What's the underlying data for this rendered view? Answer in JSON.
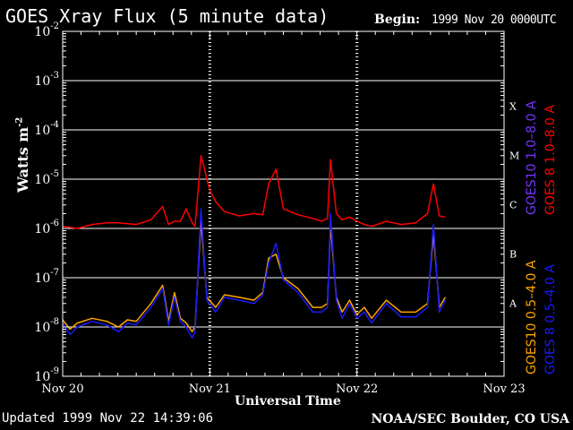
{
  "header": {
    "title": "GOES Xray Flux (5 minute data)",
    "begin_label": "Begin:",
    "begin_value": "1999 Nov 20 0000UTC"
  },
  "footer": {
    "updated": "Updated 1999 Nov 22 14:39:06",
    "credit": "NOAA/SEC Boulder, CO USA"
  },
  "colors": {
    "background": "#000000",
    "grid": "#ffffff",
    "red": "#ff0000",
    "blue": "#1a1aff",
    "orange": "#ffa500",
    "purple": "#7733ff"
  },
  "chart_data": {
    "type": "line",
    "title": "GOES Xray Flux (5 minute data)",
    "xlabel": "Universal Time",
    "ylabel": "Watts m-2",
    "ylabel_parts": {
      "base": "Watts m",
      "sup": "-2"
    },
    "yscale": "log",
    "ylim": [
      1e-09,
      0.01
    ],
    "xlim": [
      0,
      3
    ],
    "x_units": "days since 1999 Nov 20 00:00 UT",
    "x_ticks": [
      {
        "value": 0,
        "label": "Nov 20"
      },
      {
        "value": 1,
        "label": "Nov 21"
      },
      {
        "value": 2,
        "label": "Nov 22"
      },
      {
        "value": 3,
        "label": "Nov 23"
      }
    ],
    "y_ticks": [
      {
        "exp": -9,
        "base": "10",
        "sup": "-9"
      },
      {
        "exp": -8,
        "base": "10",
        "sup": "-8"
      },
      {
        "exp": -7,
        "base": "10",
        "sup": "-7"
      },
      {
        "exp": -6,
        "base": "10",
        "sup": "-6"
      },
      {
        "exp": -5,
        "base": "10",
        "sup": "-5"
      },
      {
        "exp": -4,
        "base": "10",
        "sup": "-4"
      },
      {
        "exp": -3,
        "base": "10",
        "sup": "-3"
      },
      {
        "exp": -2,
        "base": "10",
        "sup": "-2"
      }
    ],
    "flare_classes": [
      {
        "label": "A",
        "exp": -7.5
      },
      {
        "label": "B",
        "exp": -6.5
      },
      {
        "label": "C",
        "exp": -5.5
      },
      {
        "label": "M",
        "exp": -4.5
      },
      {
        "label": "X",
        "exp": -3.5
      }
    ],
    "grid": true,
    "legend": [
      {
        "text": "GOES10 1.0–8.0 A",
        "color": "#7733ff"
      },
      {
        "text": "GOES 8 1.0–8.0 A",
        "color": "#ff0000"
      },
      {
        "text": "GOES10 0.5–4.0 A",
        "color": "#ffa500"
      },
      {
        "text": "GOES 8 0.5–4.0 A",
        "color": "#1a1aff"
      }
    ],
    "series": [
      {
        "name": "GOES 8 1.0–8.0 A",
        "color": "#ff0000",
        "x": [
          0.0,
          0.1,
          0.2,
          0.3,
          0.38,
          0.5,
          0.6,
          0.68,
          0.72,
          0.76,
          0.8,
          0.84,
          0.88,
          0.9,
          0.94,
          0.96,
          0.98,
          1.0,
          1.04,
          1.1,
          1.2,
          1.3,
          1.36,
          1.4,
          1.45,
          1.5,
          1.6,
          1.7,
          1.76,
          1.8,
          1.82,
          1.86,
          1.9,
          1.95,
          2.0,
          2.05,
          2.1,
          2.2,
          2.3,
          2.4,
          2.48,
          2.52,
          2.56,
          2.6
        ],
        "y": [
          1.1e-06,
          1e-06,
          1.2e-06,
          1.3e-06,
          1.3e-06,
          1.2e-06,
          1.5e-06,
          2.8e-06,
          1.2e-06,
          1.4e-06,
          1.4e-06,
          2.5e-06,
          1.3e-06,
          1.1e-06,
          3e-05,
          1.8e-05,
          1e-05,
          6e-06,
          3.5e-06,
          2.2e-06,
          1.8e-06,
          2e-06,
          1.9e-06,
          8e-06,
          1.6e-05,
          2.5e-06,
          1.9e-06,
          1.6e-06,
          1.4e-06,
          1.6e-06,
          2.5e-05,
          2e-06,
          1.5e-06,
          1.7e-06,
          1.4e-06,
          1.2e-06,
          1.1e-06,
          1.4e-06,
          1.2e-06,
          1.3e-06,
          2e-06,
          8e-06,
          1.8e-06,
          1.7e-06
        ]
      },
      {
        "name": "GOES10 0.5–4.0 A",
        "color": "#ffa500",
        "x": [
          0.0,
          0.05,
          0.1,
          0.2,
          0.3,
          0.38,
          0.44,
          0.5,
          0.6,
          0.68,
          0.72,
          0.76,
          0.8,
          0.84,
          0.88,
          0.9,
          0.94,
          0.98,
          1.04,
          1.1,
          1.2,
          1.3,
          1.36,
          1.4,
          1.45,
          1.5,
          1.6,
          1.7,
          1.76,
          1.8,
          1.82,
          1.86,
          1.9,
          1.95,
          2.0,
          2.05,
          2.1,
          2.2,
          2.3,
          2.4,
          2.48,
          2.52,
          2.56,
          2.6
        ],
        "y": [
          1.4e-08,
          9e-09,
          1.2e-08,
          1.5e-08,
          1.3e-08,
          1e-08,
          1.4e-08,
          1.3e-08,
          3e-08,
          7e-08,
          1.3e-08,
          5e-08,
          1.5e-08,
          1.2e-08,
          8e-09,
          1e-08,
          1.5e-06,
          4e-08,
          2.5e-08,
          4.5e-08,
          4e-08,
          3.5e-08,
          5e-08,
          2.5e-07,
          3e-07,
          1e-07,
          6e-08,
          2.5e-08,
          2.5e-08,
          3e-08,
          1.2e-06,
          4e-08,
          2e-08,
          3.5e-08,
          1.8e-08,
          2.5e-08,
          1.5e-08,
          3.5e-08,
          2e-08,
          2e-08,
          3e-08,
          8e-07,
          2.5e-08,
          4e-08
        ]
      },
      {
        "name": "GOES 8 0.5–4.0 A",
        "color": "#1a1aff",
        "x": [
          0.0,
          0.05,
          0.1,
          0.2,
          0.3,
          0.38,
          0.44,
          0.5,
          0.6,
          0.68,
          0.72,
          0.76,
          0.8,
          0.84,
          0.88,
          0.9,
          0.94,
          0.98,
          1.04,
          1.1,
          1.2,
          1.3,
          1.36,
          1.4,
          1.45,
          1.5,
          1.6,
          1.7,
          1.76,
          1.8,
          1.82,
          1.86,
          1.9,
          1.95,
          2.0,
          2.05,
          2.1,
          2.2,
          2.3,
          2.4,
          2.48,
          2.52,
          2.56,
          2.6
        ],
        "y": [
          1.2e-08,
          7e-09,
          1e-08,
          1.3e-08,
          1.1e-08,
          8e-09,
          1.2e-08,
          1.1e-08,
          2.5e-08,
          6e-08,
          1.1e-08,
          4e-08,
          1.3e-08,
          1e-08,
          6e-09,
          8e-09,
          2.5e-06,
          3.5e-08,
          2e-08,
          4e-08,
          3.5e-08,
          3e-08,
          4.5e-08,
          2e-07,
          5e-07,
          9e-08,
          5e-08,
          2e-08,
          2e-08,
          2.5e-08,
          2e-06,
          3.5e-08,
          1.5e-08,
          3e-08,
          1.5e-08,
          2e-08,
          1.2e-08,
          3e-08,
          1.6e-08,
          1.6e-08,
          2.5e-08,
          1.2e-06,
          2e-08,
          3.5e-08
        ]
      }
    ]
  }
}
